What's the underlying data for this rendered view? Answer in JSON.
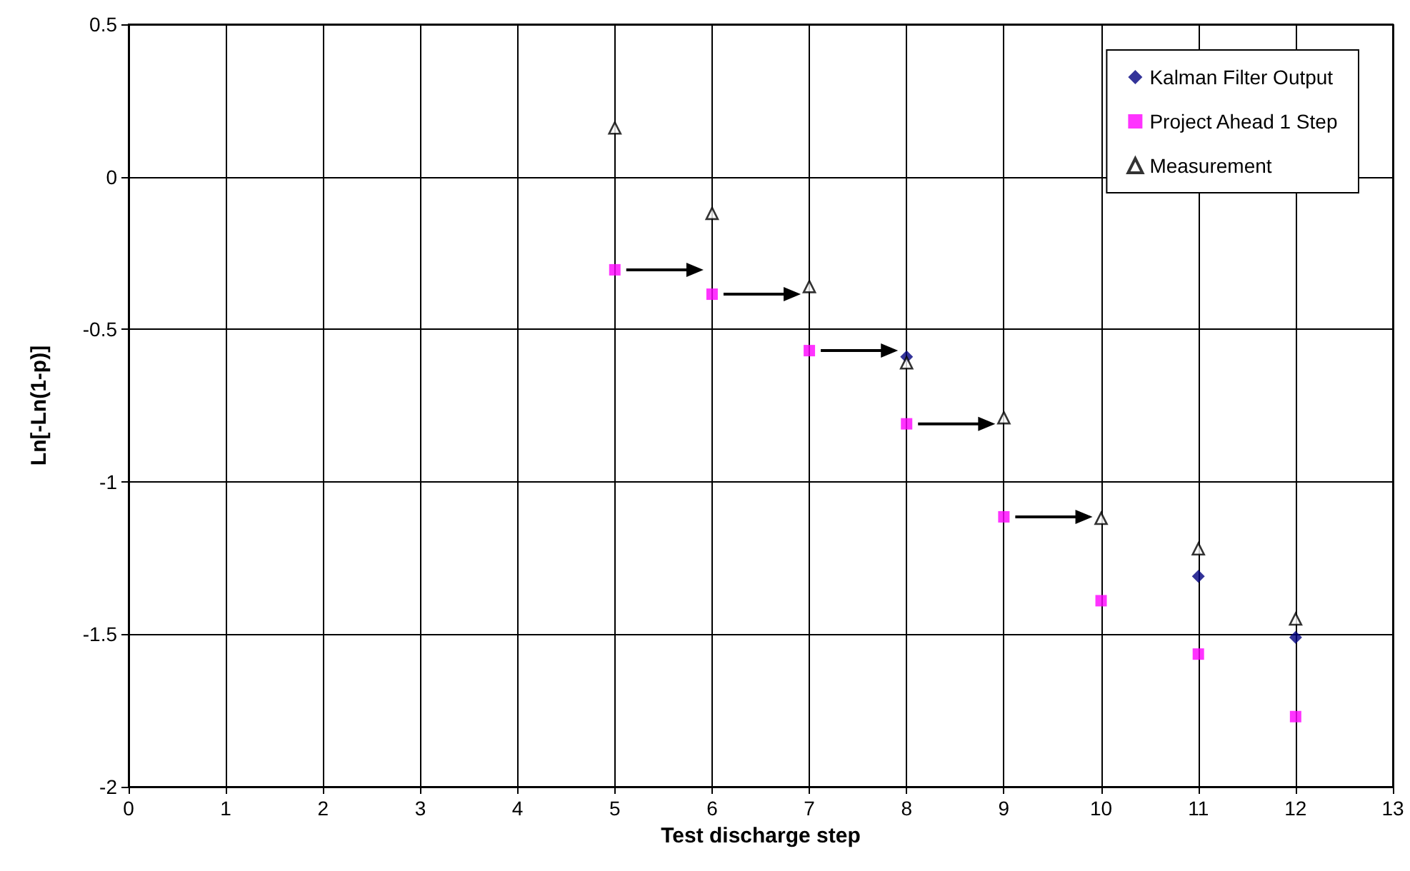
{
  "chart_data": {
    "type": "scatter",
    "xlabel": "Test discharge step",
    "ylabel": "Ln[-Ln(1-p)]",
    "x": [
      5,
      6,
      7,
      8,
      9,
      10,
      11,
      12
    ],
    "series": [
      {
        "name": "Kalman Filter Output",
        "color": "#000080",
        "marker": "diamond",
        "values": [
          null,
          null,
          null,
          -0.59,
          null,
          null,
          -1.31,
          -1.51
        ]
      },
      {
        "name": "Project Ahead 1 Step",
        "color": "#ff00ff",
        "marker": "square",
        "values": [
          -0.305,
          -0.385,
          -0.57,
          -0.81,
          -1.115,
          -1.39,
          -1.565,
          -1.77
        ]
      },
      {
        "name": "Measurement",
        "color": "#000000",
        "marker": "triangle",
        "values": [
          0.16,
          -0.12,
          -0.36,
          -0.61,
          -0.79,
          -1.12,
          -1.22,
          -1.45
        ]
      }
    ],
    "xlim": [
      0,
      13
    ],
    "xticks": [
      0,
      1,
      2,
      3,
      4,
      5,
      6,
      7,
      8,
      9,
      10,
      11,
      12,
      13
    ],
    "ylim": [
      -2,
      0.5
    ],
    "yticks": [
      -2,
      -1.5,
      -1,
      -0.5,
      0,
      0.5
    ],
    "grid": true,
    "legend": "top right"
  }
}
